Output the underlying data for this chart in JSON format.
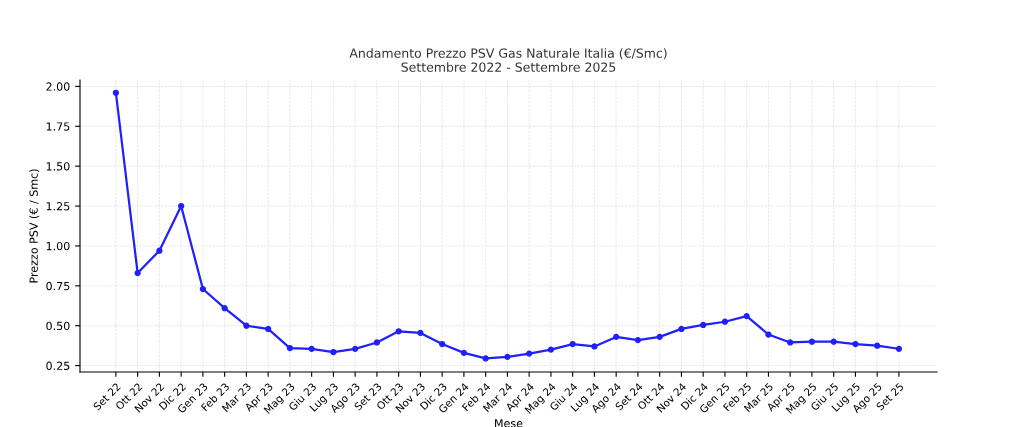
{
  "chart_data": {
    "type": "line",
    "title": "Andamento Prezzo PSV Gas Naturale Italia (€/Smc)",
    "subtitle": "Settembre 2022 - Settembre 2025",
    "xlabel": "Mese",
    "ylabel": "Prezzo PSV (€ / Smc)",
    "categories": [
      "Set 22",
      "Ott 22",
      "Nov 22",
      "Dic 22",
      "Gen 23",
      "Feb 23",
      "Mar 23",
      "Apr 23",
      "Mag 23",
      "Giu 23",
      "Lug 23",
      "Ago 23",
      "Set 23",
      "Ott 23",
      "Nov 23",
      "Dic 23",
      "Gen 24",
      "Feb 24",
      "Mar 24",
      "Apr 24",
      "Mag 24",
      "Giu 24",
      "Lug 24",
      "Ago 24",
      "Set 24",
      "Ott 24",
      "Nov 24",
      "Dic 24",
      "Gen 25",
      "Feb 25",
      "Mar 25",
      "Apr 25",
      "Mag 25",
      "Giu 25",
      "Lug 25",
      "Ago 25",
      "Set 25"
    ],
    "series": [
      {
        "color": "#1f1fff",
        "values": [
          1.96,
          0.83,
          0.97,
          1.25,
          0.73,
          0.61,
          0.5,
          0.48,
          0.36,
          0.355,
          0.335,
          0.355,
          0.395,
          0.465,
          0.455,
          0.385,
          0.33,
          0.295,
          0.305,
          0.325,
          0.35,
          0.385,
          0.37,
          0.43,
          0.41,
          0.43,
          0.48,
          0.505,
          0.525,
          0.56,
          0.445,
          0.395,
          0.4,
          0.4,
          0.385,
          0.375,
          0.355
        ]
      }
    ],
    "ylim": [
      0.21,
      2.04
    ],
    "yticks": [
      0.25,
      {
        "value": 0.5,
        "label": "0.50"
      },
      0.75,
      {
        "value": 1.0,
        "label": "1.00"
      },
      1.25,
      {
        "value": 1.5,
        "label": "1.50"
      },
      1.75,
      {
        "value": 2.0,
        "label": "2.00"
      }
    ],
    "grid": true,
    "marker": "circle",
    "line_style": "solid",
    "legend": false
  }
}
